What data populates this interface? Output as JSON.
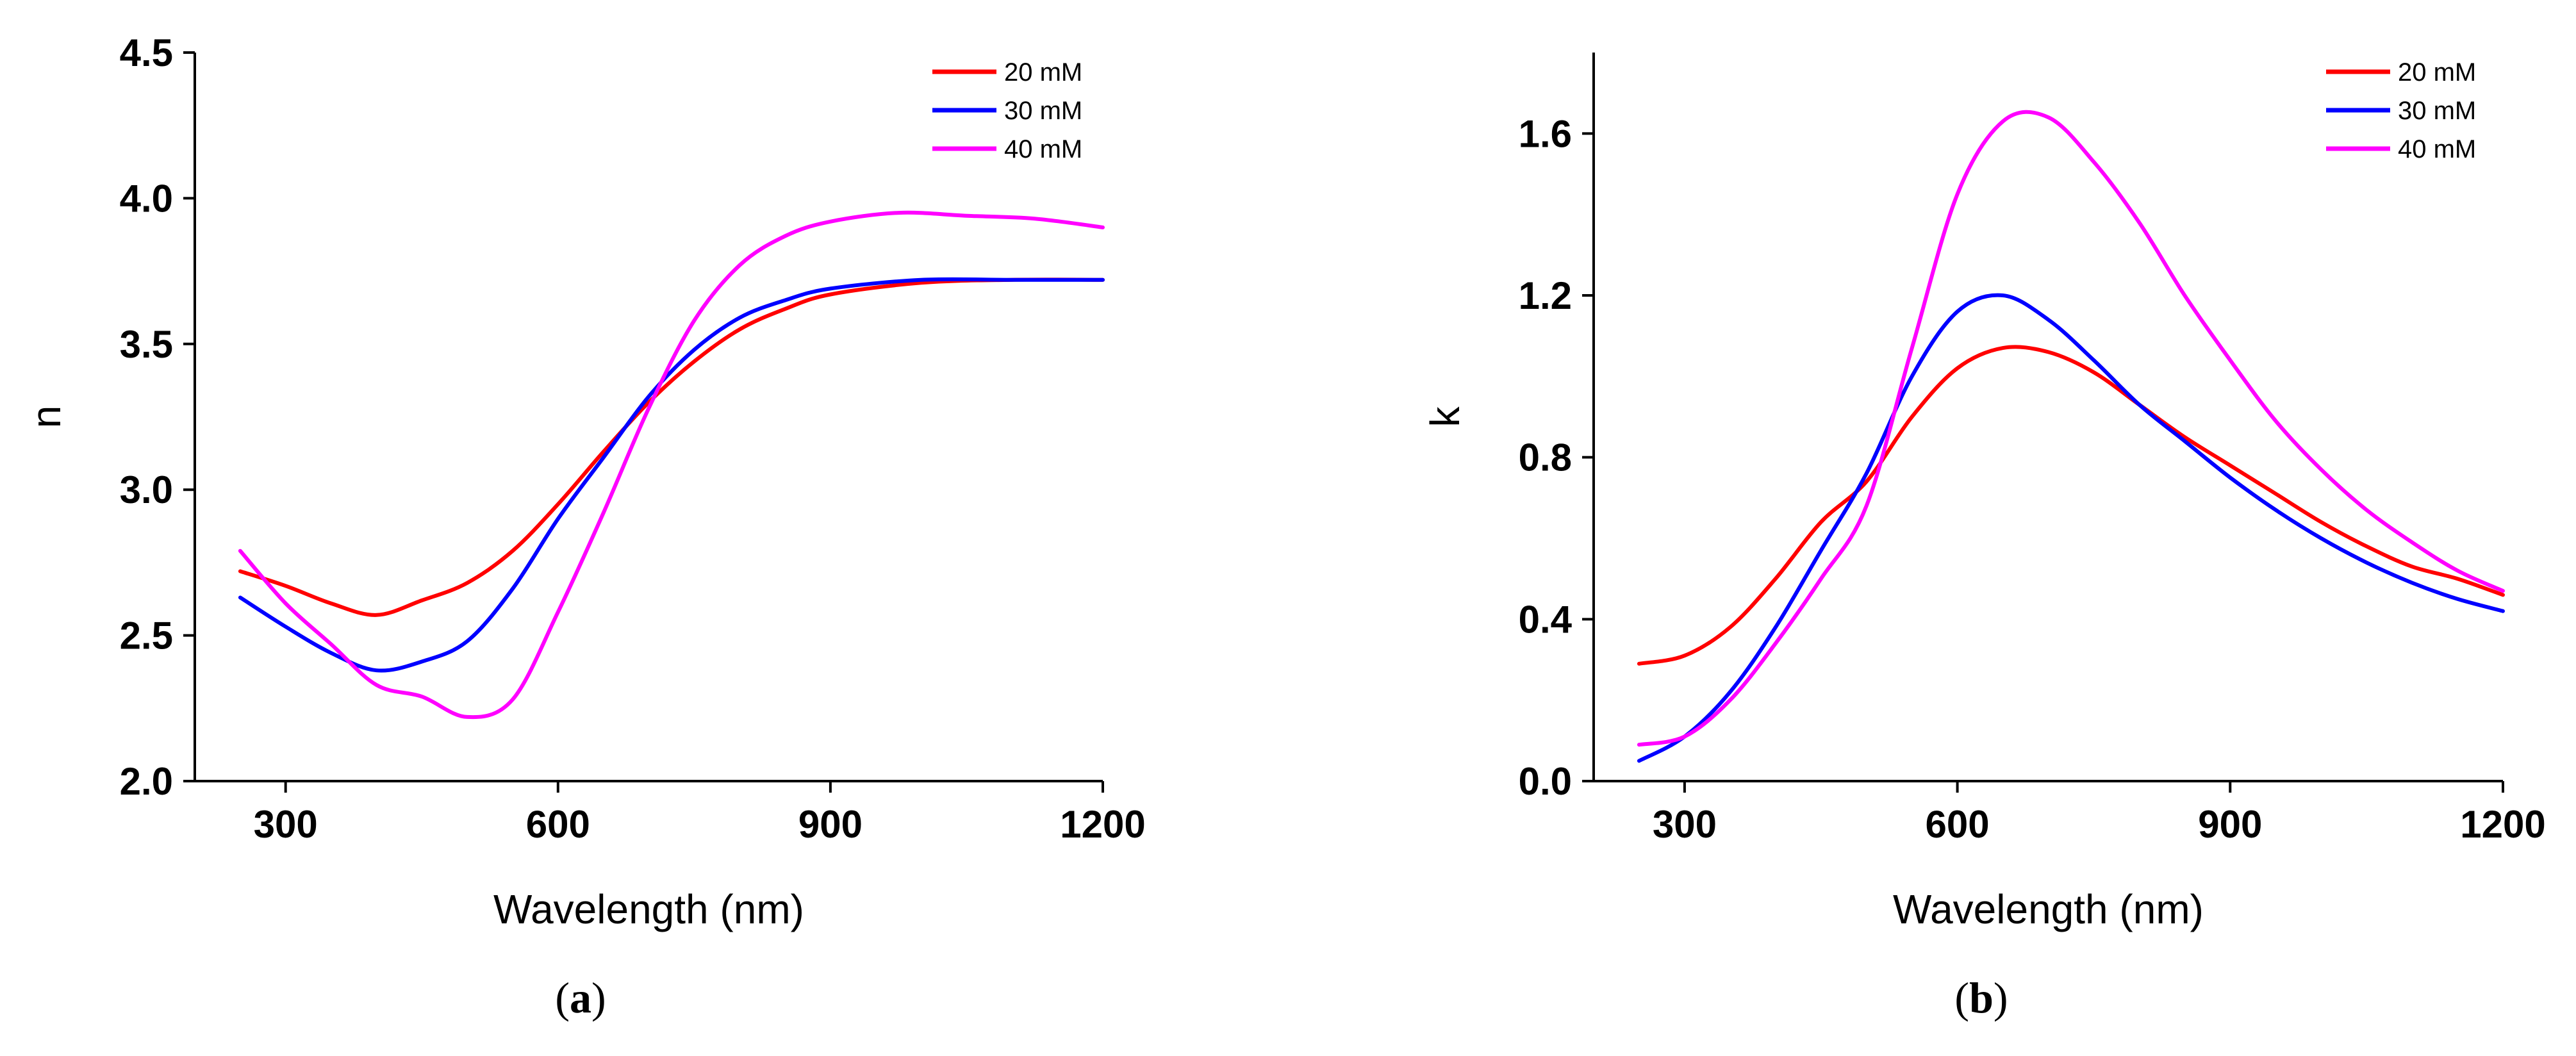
{
  "chart_data": [
    {
      "type": "line",
      "panel_label": "a",
      "title": "",
      "xlabel": "Wavelength (nm)",
      "ylabel": "n",
      "xlim": [
        200,
        1200
      ],
      "ylim": [
        2.0,
        4.5
      ],
      "xticks": [
        300,
        600,
        900,
        1200
      ],
      "xtick_labels": [
        "300",
        "600",
        "900",
        "1200"
      ],
      "yticks": [
        2.0,
        2.5,
        3.0,
        3.5,
        4.0,
        4.5
      ],
      "ytick_labels": [
        "2.0",
        "2.5",
        "3.0",
        "3.5",
        "4.0",
        "4.5"
      ],
      "legend_position": "top-right",
      "grid": false,
      "series": [
        {
          "name": "20 mM",
          "color": "#ff0000",
          "x": [
            250,
            300,
            350,
            400,
            450,
            500,
            550,
            600,
            650,
            700,
            750,
            800,
            850,
            900,
            1000,
            1100,
            1200
          ],
          "y": [
            2.72,
            2.67,
            2.61,
            2.57,
            2.62,
            2.68,
            2.79,
            2.95,
            3.13,
            3.3,
            3.44,
            3.55,
            3.62,
            3.67,
            3.71,
            3.72,
            3.72
          ]
        },
        {
          "name": "30 mM",
          "color": "#0000ff",
          "x": [
            250,
            300,
            350,
            400,
            450,
            500,
            550,
            600,
            650,
            700,
            750,
            800,
            850,
            900,
            1000,
            1100,
            1200
          ],
          "y": [
            2.63,
            2.53,
            2.44,
            2.38,
            2.41,
            2.48,
            2.66,
            2.9,
            3.11,
            3.32,
            3.48,
            3.59,
            3.65,
            3.69,
            3.72,
            3.72,
            3.72
          ]
        },
        {
          "name": "40 mM",
          "color": "#ff00ff",
          "x": [
            250,
            300,
            350,
            400,
            450,
            500,
            550,
            600,
            650,
            700,
            750,
            800,
            850,
            900,
            975,
            1050,
            1125,
            1200
          ],
          "y": [
            2.79,
            2.61,
            2.47,
            2.33,
            2.29,
            2.22,
            2.28,
            2.58,
            2.92,
            3.28,
            3.58,
            3.77,
            3.87,
            3.92,
            3.95,
            3.94,
            3.93,
            3.9
          ]
        }
      ]
    },
    {
      "type": "line",
      "panel_label": "b",
      "title": "",
      "xlabel": "Wavelength (nm)",
      "ylabel": "k",
      "xlim": [
        200,
        1200
      ],
      "ylim": [
        0.0,
        1.8
      ],
      "xticks": [
        300,
        600,
        900,
        1200
      ],
      "xtick_labels": [
        "300",
        "600",
        "900",
        "1200"
      ],
      "yticks": [
        0.0,
        0.4,
        0.8,
        1.2,
        1.6
      ],
      "ytick_labels": [
        "0.0",
        "0.4",
        "0.8",
        "1.2",
        "1.6"
      ],
      "legend_position": "top-right",
      "grid": false,
      "series": [
        {
          "name": "20 mM",
          "color": "#ff0000",
          "x": [
            250,
            300,
            350,
            400,
            450,
            500,
            550,
            600,
            650,
            700,
            750,
            800,
            850,
            900,
            950,
            1000,
            1050,
            1100,
            1150,
            1200
          ],
          "y": [
            0.29,
            0.31,
            0.38,
            0.5,
            0.64,
            0.74,
            0.9,
            1.02,
            1.07,
            1.06,
            1.01,
            0.93,
            0.85,
            0.78,
            0.71,
            0.64,
            0.58,
            0.53,
            0.5,
            0.46
          ]
        },
        {
          "name": "30 mM",
          "color": "#0000ff",
          "x": [
            250,
            300,
            350,
            400,
            450,
            500,
            550,
            600,
            650,
            700,
            750,
            800,
            850,
            900,
            950,
            1000,
            1050,
            1100,
            1150,
            1200
          ],
          "y": [
            0.05,
            0.11,
            0.22,
            0.38,
            0.57,
            0.76,
            1.0,
            1.16,
            1.2,
            1.14,
            1.04,
            0.93,
            0.84,
            0.75,
            0.67,
            0.6,
            0.54,
            0.49,
            0.45,
            0.42
          ]
        },
        {
          "name": "40 mM",
          "color": "#ff00ff",
          "x": [
            250,
            300,
            350,
            400,
            450,
            500,
            550,
            600,
            650,
            700,
            750,
            800,
            850,
            900,
            950,
            1000,
            1050,
            1100,
            1150,
            1200
          ],
          "y": [
            0.09,
            0.11,
            0.2,
            0.34,
            0.5,
            0.68,
            1.07,
            1.45,
            1.63,
            1.64,
            1.53,
            1.38,
            1.2,
            1.04,
            0.89,
            0.77,
            0.67,
            0.59,
            0.52,
            0.47
          ]
        }
      ]
    }
  ]
}
